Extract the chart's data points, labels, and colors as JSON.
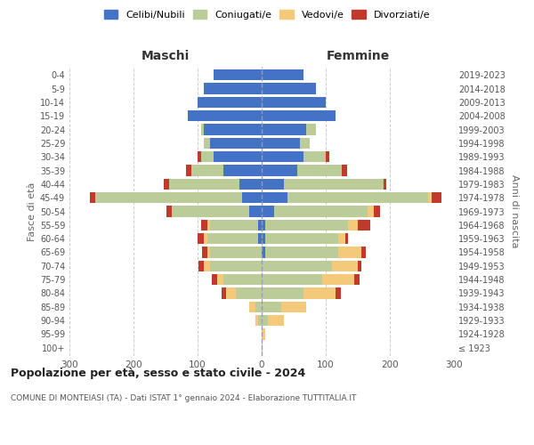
{
  "age_groups": [
    "100+",
    "95-99",
    "90-94",
    "85-89",
    "80-84",
    "75-79",
    "70-74",
    "65-69",
    "60-64",
    "55-59",
    "50-54",
    "45-49",
    "40-44",
    "35-39",
    "30-34",
    "25-29",
    "20-24",
    "15-19",
    "10-14",
    "5-9",
    "0-4"
  ],
  "birth_years": [
    "≤ 1923",
    "1924-1928",
    "1929-1933",
    "1934-1938",
    "1939-1943",
    "1944-1948",
    "1949-1953",
    "1954-1958",
    "1959-1963",
    "1964-1968",
    "1969-1973",
    "1974-1978",
    "1979-1983",
    "1984-1988",
    "1989-1993",
    "1994-1998",
    "1999-2003",
    "2004-2008",
    "2009-2013",
    "2014-2018",
    "2019-2023"
  ],
  "male_celibi": [
    0,
    0,
    0,
    0,
    0,
    0,
    0,
    0,
    5,
    5,
    20,
    30,
    35,
    60,
    75,
    80,
    90,
    115,
    100,
    90,
    75
  ],
  "male_coniugati": [
    0,
    0,
    5,
    10,
    40,
    60,
    80,
    80,
    80,
    75,
    120,
    230,
    110,
    50,
    20,
    10,
    5,
    0,
    0,
    0,
    0
  ],
  "male_vedovi": [
    0,
    0,
    5,
    10,
    15,
    10,
    10,
    5,
    5,
    5,
    0,
    0,
    0,
    0,
    0,
    0,
    0,
    0,
    0,
    0,
    0
  ],
  "male_divorziati": [
    0,
    0,
    0,
    0,
    8,
    8,
    8,
    8,
    10,
    10,
    8,
    8,
    8,
    8,
    5,
    0,
    0,
    0,
    0,
    0,
    0
  ],
  "female_celibi": [
    0,
    0,
    0,
    0,
    0,
    0,
    0,
    5,
    5,
    5,
    20,
    40,
    35,
    55,
    65,
    60,
    70,
    115,
    100,
    85,
    65
  ],
  "female_coniugati": [
    0,
    0,
    10,
    30,
    65,
    95,
    110,
    115,
    115,
    130,
    145,
    220,
    155,
    70,
    35,
    15,
    15,
    0,
    0,
    0,
    0
  ],
  "female_vedovi": [
    2,
    5,
    25,
    40,
    50,
    50,
    40,
    35,
    10,
    15,
    10,
    5,
    0,
    0,
    0,
    0,
    0,
    0,
    0,
    0,
    0
  ],
  "female_divorziati": [
    0,
    0,
    0,
    0,
    8,
    8,
    5,
    8,
    5,
    20,
    10,
    15,
    5,
    8,
    5,
    0,
    0,
    0,
    0,
    0,
    0
  ],
  "colors": {
    "celibi": "#4472C4",
    "coniugati": "#BBCC99",
    "vedovi": "#F5C97A",
    "divorziati": "#C0392B"
  },
  "title": "Popolazione per età, sesso e stato civile - 2024",
  "subtitle": "COMUNE DI MONTEIASI (TA) - Dati ISTAT 1° gennaio 2024 - Elaborazione TUTTITALIA.IT",
  "xlabel_left": "Maschi",
  "xlabel_right": "Femmine",
  "ylabel_left": "Fasce di età",
  "ylabel_right": "Anni di nascita",
  "xlim": 300,
  "bg_color": "#ffffff",
  "grid_color": "#cccccc"
}
